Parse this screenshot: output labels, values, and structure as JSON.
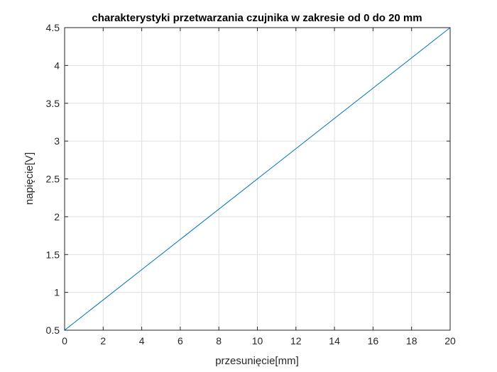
{
  "chart_data": {
    "type": "line",
    "title": "charakterystyki przetwarzania czujnika w zakresie od 0 do 20 mm",
    "xlabel": "przesunięcie[mm]",
    "ylabel": "napięcie[V]",
    "xlim": [
      0,
      20
    ],
    "ylim": [
      0.5,
      4.5
    ],
    "xticks": [
      0,
      2,
      4,
      6,
      8,
      10,
      12,
      14,
      16,
      18,
      20
    ],
    "yticks": [
      0.5,
      1,
      1.5,
      2,
      2.5,
      3,
      3.5,
      4,
      4.5
    ],
    "xtick_labels": [
      "0",
      "2",
      "4",
      "6",
      "8",
      "10",
      "12",
      "14",
      "16",
      "18",
      "20"
    ],
    "ytick_labels": [
      "0.5",
      "1",
      "1.5",
      "2",
      "2.5",
      "3",
      "3.5",
      "4",
      "4.5"
    ],
    "grid": true,
    "series": [
      {
        "color": "#0072bd",
        "x": [
          0,
          20
        ],
        "y": [
          0.5,
          4.5
        ]
      }
    ]
  }
}
